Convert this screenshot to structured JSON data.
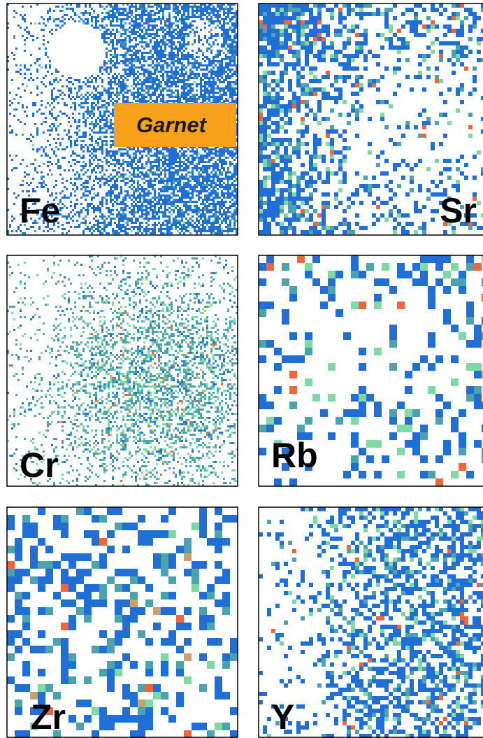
{
  "panels": [
    {
      "label": "Fe",
      "annotation": "Garnet"
    },
    {
      "label": "Sr"
    },
    {
      "label": "Cr"
    },
    {
      "label": "Rb"
    },
    {
      "label": "Zr"
    },
    {
      "label": "Y"
    }
  ]
}
